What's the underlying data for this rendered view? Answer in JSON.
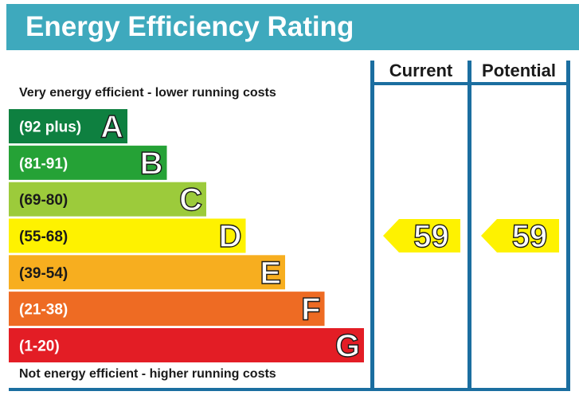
{
  "title": "Energy Efficiency Rating",
  "top_caption": "Very energy efficient - lower running costs",
  "bottom_caption": "Not energy efficient - higher running costs",
  "columns": {
    "current": "Current",
    "potential": "Potential"
  },
  "chart_data": {
    "type": "bar",
    "bands": [
      {
        "range": "(92 plus)",
        "letter": "A",
        "color": "#0e8040"
      },
      {
        "range": "(81-91)",
        "letter": "B",
        "color": "#25a236"
      },
      {
        "range": "(69-80)",
        "letter": "C",
        "color": "#9ccb3b"
      },
      {
        "range": "(55-68)",
        "letter": "D",
        "color": "#fef200"
      },
      {
        "range": "(39-54)",
        "letter": "E",
        "color": "#f7ae1f"
      },
      {
        "range": "(21-38)",
        "letter": "F",
        "color": "#ee6b23"
      },
      {
        "range": "(1-20)",
        "letter": "G",
        "color": "#e31d25"
      }
    ],
    "current": {
      "value": 59,
      "band": "D",
      "color": "#fef200"
    },
    "potential": {
      "value": 59,
      "band": "D",
      "color": "#fef200"
    }
  }
}
